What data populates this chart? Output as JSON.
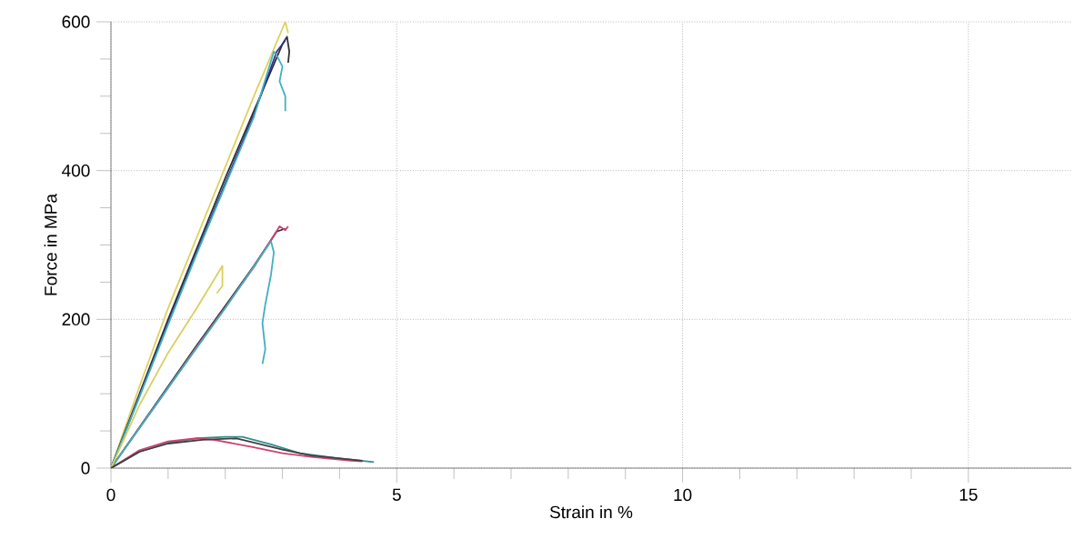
{
  "chart_data": {
    "type": "line",
    "xlabel": "Strain in %",
    "ylabel": "Force in MPa",
    "xlim": [
      0,
      16.8
    ],
    "ylim": [
      0,
      600
    ],
    "xticks": [
      0,
      5,
      10,
      15
    ],
    "yticks": [
      0,
      200,
      400,
      600
    ],
    "grid": true,
    "series": [
      {
        "color": "#e0d060",
        "x": [
          0,
          0.5,
          1,
          1.5,
          2,
          2.5,
          3.05,
          3.1
        ],
        "values": [
          0,
          110,
          215,
          310,
          405,
          500,
          600,
          585
        ]
      },
      {
        "color": "#303030",
        "x": [
          0,
          0.5,
          1,
          1.5,
          2,
          2.5,
          3.0,
          3.08,
          3.12,
          3.1
        ],
        "values": [
          0,
          100,
          200,
          295,
          390,
          480,
          570,
          580,
          560,
          545
        ]
      },
      {
        "color": "#303090",
        "x": [
          0,
          0.5,
          1,
          1.5,
          2,
          2.5,
          2.9,
          3.05
        ],
        "values": [
          0,
          97,
          195,
          290,
          383,
          475,
          560,
          575
        ]
      },
      {
        "color": "#40b0c0",
        "x": [
          0,
          0.5,
          1,
          1.5,
          2,
          2.5,
          2.85,
          2.9,
          3.0,
          2.95,
          3.05,
          3.05
        ],
        "values": [
          0,
          96,
          193,
          288,
          380,
          472,
          560,
          555,
          540,
          520,
          500,
          480
        ]
      },
      {
        "color": "#303030",
        "x": [
          0,
          0.5,
          1,
          1.5,
          2,
          2.5,
          2.9,
          3.05
        ],
        "values": [
          0,
          55,
          110,
          165,
          218,
          272,
          318,
          322
        ]
      },
      {
        "color": "#d04070",
        "x": [
          0,
          0.5,
          1,
          1.5,
          2,
          2.5,
          2.95,
          3.05,
          3.1
        ],
        "values": [
          0,
          54,
          108,
          163,
          216,
          270,
          325,
          320,
          325
        ]
      },
      {
        "color": "#40b0c0",
        "x": [
          0,
          1,
          2,
          2.8,
          2.85,
          2.8,
          2.7,
          2.65,
          2.7,
          2.65
        ],
        "values": [
          0,
          108,
          215,
          305,
          290,
          260,
          220,
          195,
          160,
          140
        ]
      },
      {
        "color": "#d8d060",
        "x": [
          0,
          0.5,
          1,
          1.5,
          1.95,
          1.95,
          1.85
        ],
        "values": [
          0,
          85,
          155,
          215,
          272,
          245,
          235
        ]
      },
      {
        "color": "#309090",
        "x": [
          0,
          0.5,
          1,
          1.5,
          2,
          2.3,
          2.8,
          3.3,
          4,
          4.6
        ],
        "values": [
          0,
          22,
          34,
          40,
          42,
          42,
          32,
          20,
          13,
          8
        ]
      },
      {
        "color": "#d04070",
        "x": [
          0,
          0.5,
          1,
          1.5,
          1.8,
          2.5,
          3,
          3.5,
          4.2,
          4.4
        ],
        "values": [
          0,
          24,
          36,
          40,
          38,
          28,
          20,
          15,
          10,
          9
        ]
      },
      {
        "color": "#404040",
        "x": [
          0,
          0.5,
          1,
          1.6,
          2.2,
          3,
          3.5,
          4.4
        ],
        "values": [
          0,
          22,
          33,
          38,
          40,
          25,
          17,
          10
        ]
      }
    ]
  }
}
